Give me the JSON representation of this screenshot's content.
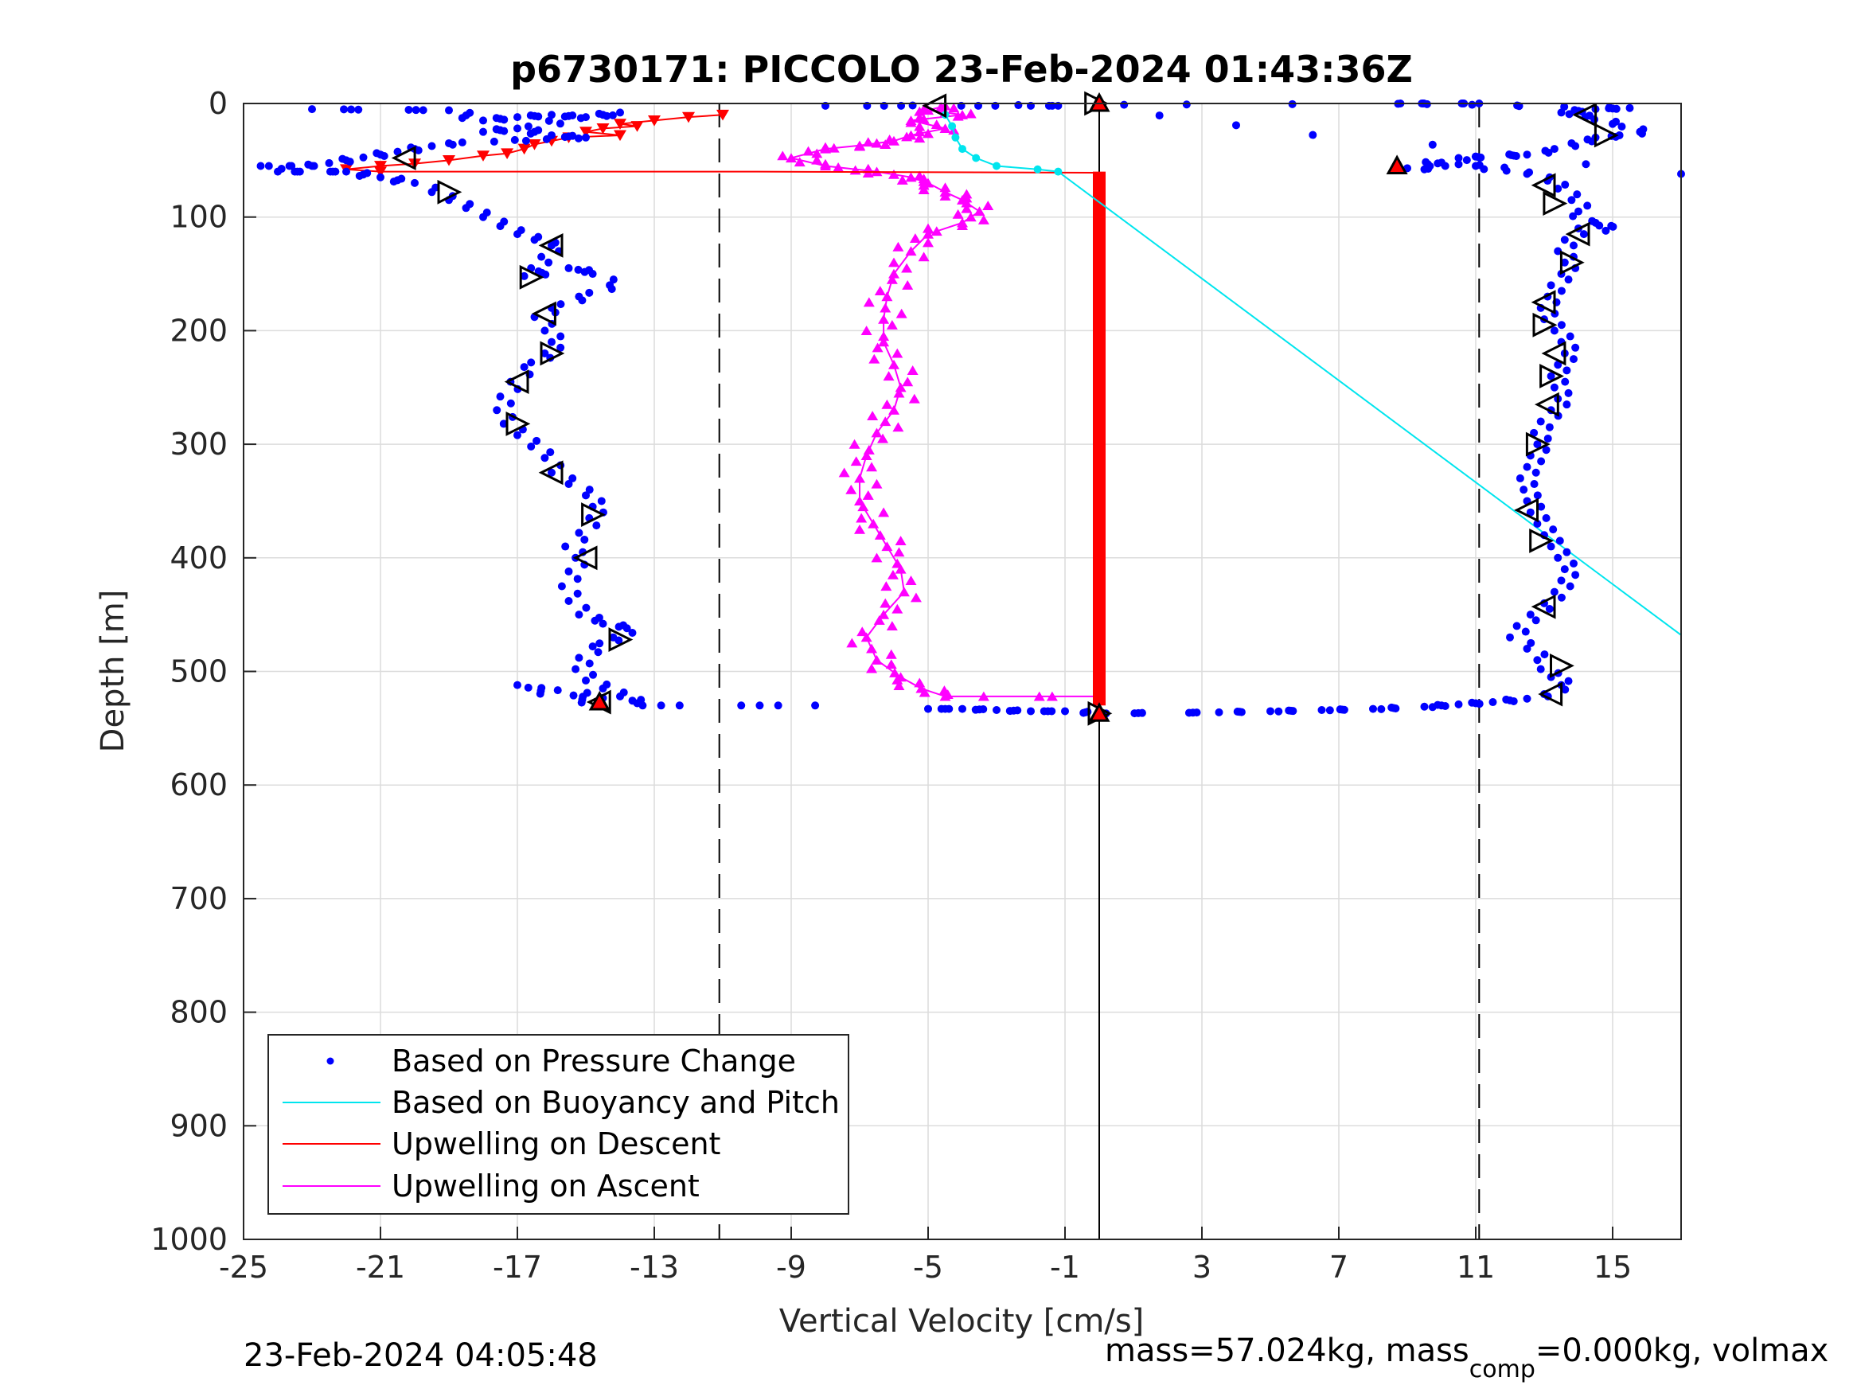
{
  "chart_data": {
    "type": "scatter",
    "title": "p6730171: PICCOLO 23-Feb-2024 01:43:36Z",
    "xlabel": "Vertical Velocity [cm/s]",
    "ylabel": "Depth [m]",
    "xlim": [
      -25,
      17
    ],
    "ylim": [
      0,
      1000
    ],
    "y_reversed": true,
    "grid": true,
    "x_ticks": [
      -25,
      -21,
      -17,
      -13,
      -9,
      -5,
      -1,
      3,
      7,
      11,
      15
    ],
    "y_ticks": [
      0,
      100,
      200,
      300,
      400,
      500,
      600,
      700,
      800,
      900,
      1000
    ],
    "legend_position": "bottom-left",
    "reference_lines": [
      {
        "x": -11.1,
        "style": "dashed",
        "color": "#000000"
      },
      {
        "x": 0,
        "style": "solid",
        "color": "#000000"
      },
      {
        "x": 11.1,
        "style": "dashed",
        "color": "#000000"
      }
    ],
    "series": [
      {
        "name": "Based on Pressure Change",
        "style": "dots",
        "color": "#0000ff",
        "descent_points": [
          [
            -23,
            5
          ],
          [
            -19,
            6
          ],
          [
            -18,
            15
          ],
          [
            -17,
            12
          ],
          [
            -16,
            10
          ],
          [
            -15,
            12
          ],
          [
            -14,
            8
          ],
          [
            -18,
            25
          ],
          [
            -17,
            22
          ],
          [
            -16,
            28
          ],
          [
            -15,
            30
          ],
          [
            -19,
            35
          ],
          [
            -20,
            40
          ],
          [
            -21,
            45
          ],
          [
            -22,
            50
          ],
          [
            -23,
            55
          ],
          [
            -24.5,
            55
          ],
          [
            -24,
            60
          ],
          [
            -22,
            60
          ],
          [
            -21,
            65
          ],
          [
            -20,
            70
          ],
          [
            -19.5,
            78
          ],
          [
            -19,
            85
          ],
          [
            -18.5,
            92
          ],
          [
            -18,
            100
          ],
          [
            -17.5,
            108
          ],
          [
            -17,
            115
          ],
          [
            -16.5,
            120
          ],
          [
            -16,
            125
          ],
          [
            -16.3,
            135
          ],
          [
            -16.6,
            145
          ],
          [
            -16.8,
            152
          ],
          [
            -15.5,
            145
          ],
          [
            -14.8,
            150
          ],
          [
            -14.3,
            160
          ],
          [
            -15.2,
            170
          ],
          [
            -16,
            180
          ],
          [
            -16.5,
            188
          ],
          [
            -16.2,
            200
          ],
          [
            -16,
            210
          ],
          [
            -16.2,
            220
          ],
          [
            -16.8,
            232
          ],
          [
            -17.2,
            245
          ],
          [
            -17.5,
            258
          ],
          [
            -17.6,
            270
          ],
          [
            -17.4,
            282
          ],
          [
            -17,
            292
          ],
          [
            -16.6,
            302
          ],
          [
            -16.2,
            312
          ],
          [
            -16,
            325
          ],
          [
            -15.5,
            335
          ],
          [
            -15,
            345
          ],
          [
            -14.8,
            355
          ],
          [
            -14.9,
            365
          ],
          [
            -15.2,
            378
          ],
          [
            -15.6,
            390
          ],
          [
            -15.3,
            400
          ],
          [
            -15.5,
            412
          ],
          [
            -15.7,
            425
          ],
          [
            -15.5,
            438
          ],
          [
            -15.2,
            450
          ],
          [
            -14.5,
            458
          ],
          [
            -13.8,
            462
          ],
          [
            -14.2,
            470
          ],
          [
            -14.8,
            478
          ],
          [
            -15.2,
            488
          ],
          [
            -15.3,
            498
          ],
          [
            -15,
            508
          ],
          [
            -14.5,
            515
          ],
          [
            -14,
            522
          ],
          [
            -13.5,
            528
          ],
          [
            -17,
            512
          ],
          [
            -14.6,
            530
          ],
          [
            -8.3,
            530
          ]
        ],
        "ascent_points": [
          [
            -5,
            533
          ],
          [
            -4,
            533
          ],
          [
            -3,
            534
          ],
          [
            -2,
            535
          ],
          [
            -1,
            535
          ],
          [
            0.2,
            537
          ],
          [
            3.5,
            536
          ],
          [
            5,
            535
          ],
          [
            6.5,
            534
          ],
          [
            8,
            533
          ],
          [
            9.5,
            531
          ],
          [
            10.5,
            529
          ],
          [
            11.5,
            527
          ],
          [
            12.5,
            524
          ],
          [
            13,
            520
          ],
          [
            13.5,
            512
          ],
          [
            13.2,
            505
          ],
          [
            12.9,
            498
          ],
          [
            12.8,
            490
          ],
          [
            12.5,
            480
          ],
          [
            12,
            470
          ],
          [
            12.2,
            460
          ],
          [
            12.6,
            450
          ],
          [
            13,
            440
          ],
          [
            13.3,
            430
          ],
          [
            13.5,
            420
          ],
          [
            13.6,
            410
          ],
          [
            13.4,
            400
          ],
          [
            13.2,
            390
          ],
          [
            13,
            380
          ],
          [
            12.8,
            370
          ],
          [
            12.6,
            360
          ],
          [
            12.5,
            350
          ],
          [
            12.4,
            340
          ],
          [
            12.3,
            330
          ],
          [
            12.5,
            320
          ],
          [
            12.6,
            310
          ],
          [
            12.8,
            300
          ],
          [
            12.7,
            290
          ],
          [
            12.9,
            280
          ],
          [
            13.2,
            270
          ],
          [
            13.4,
            260
          ],
          [
            13.3,
            250
          ],
          [
            13.2,
            240
          ],
          [
            13.4,
            230
          ],
          [
            13.6,
            220
          ],
          [
            13.5,
            210
          ],
          [
            13.3,
            200
          ],
          [
            13,
            190
          ],
          [
            12.9,
            180
          ],
          [
            13.1,
            170
          ],
          [
            13.2,
            160
          ],
          [
            13.5,
            150
          ],
          [
            13.6,
            140
          ],
          [
            13.4,
            130
          ],
          [
            13.6,
            120
          ],
          [
            14,
            110
          ],
          [
            14.5,
            105
          ],
          [
            14.8,
            112
          ],
          [
            14,
            95
          ],
          [
            13.8,
            85
          ],
          [
            13.4,
            75
          ],
          [
            13.1,
            68
          ],
          [
            12.5,
            62
          ],
          [
            11,
            55
          ],
          [
            10,
            52
          ],
          [
            9.5,
            58
          ],
          [
            9,
            57
          ],
          [
            10.5,
            48
          ],
          [
            12.5,
            45
          ],
          [
            13.3,
            40
          ],
          [
            13.8,
            35
          ],
          [
            14.5,
            30
          ],
          [
            15.2,
            28
          ],
          [
            15.8,
            25
          ],
          [
            15,
            18
          ],
          [
            14.2,
            12
          ],
          [
            13.5,
            8
          ],
          [
            14.5,
            5
          ],
          [
            15.5,
            4
          ],
          [
            8.8,
            0
          ],
          [
            11.1,
            0
          ],
          [
            -8,
            2
          ],
          [
            -2,
            2
          ],
          [
            -1.2,
            2
          ],
          [
            17,
            62
          ]
        ]
      },
      {
        "name": "Based on Buoyancy and Pitch",
        "style": "line",
        "color": "#00e5ee",
        "points": [
          [
            -4.5,
            10
          ],
          [
            -4.3,
            20
          ],
          [
            -4.2,
            30
          ],
          [
            -4,
            40
          ],
          [
            -3.6,
            48
          ],
          [
            -3,
            55
          ],
          [
            -1.8,
            58
          ],
          [
            -1.2,
            60
          ],
          [
            17,
            468
          ]
        ]
      },
      {
        "name": "Upwelling on Descent",
        "style": "line",
        "color": "#ff0000",
        "markers": "triangle-down",
        "points": [
          [
            -11,
            10
          ],
          [
            -12,
            12
          ],
          [
            -13,
            15
          ],
          [
            -14,
            18
          ],
          [
            -13.5,
            20
          ],
          [
            -14.5,
            22
          ],
          [
            -15,
            25
          ],
          [
            -14,
            28
          ],
          [
            -15.5,
            30
          ],
          [
            -16,
            33
          ],
          [
            -16.5,
            36
          ],
          [
            -16.8,
            40
          ],
          [
            -17.3,
            44
          ],
          [
            -18,
            46
          ],
          [
            -19,
            50
          ],
          [
            -20,
            53
          ],
          [
            -21,
            55
          ],
          [
            -22,
            58
          ],
          [
            -21,
            60
          ],
          [
            -10,
            60
          ],
          [
            0,
            61
          ]
        ]
      },
      {
        "name": "Upwelling on Ascent",
        "style": "line",
        "color": "#ff00ff",
        "markers": "triangle-up",
        "points": [
          [
            -4.5,
            2
          ],
          [
            -5,
            6
          ],
          [
            -4,
            10
          ],
          [
            -5.5,
            15
          ],
          [
            -4.5,
            22
          ],
          [
            -5.5,
            28
          ],
          [
            -6,
            33
          ],
          [
            -7,
            37
          ],
          [
            -8,
            40
          ],
          [
            -9,
            48
          ],
          [
            -8,
            55
          ],
          [
            -6.5,
            60
          ],
          [
            -5.5,
            65
          ],
          [
            -5,
            70
          ],
          [
            -4.5,
            78
          ],
          [
            -4,
            85
          ],
          [
            -3.5,
            95
          ],
          [
            -4,
            105
          ],
          [
            -5,
            115
          ],
          [
            -5.5,
            130
          ],
          [
            -6,
            150
          ],
          [
            -6.2,
            170
          ],
          [
            -6.3,
            190
          ],
          [
            -6.3,
            210
          ],
          [
            -6,
            230
          ],
          [
            -5.8,
            250
          ],
          [
            -6,
            270
          ],
          [
            -6.5,
            290
          ],
          [
            -6.8,
            310
          ],
          [
            -7,
            330
          ],
          [
            -7,
            350
          ],
          [
            -6.6,
            370
          ],
          [
            -6.2,
            390
          ],
          [
            -5.8,
            410
          ],
          [
            -5.7,
            430
          ],
          [
            -6.3,
            450
          ],
          [
            -6.8,
            470
          ],
          [
            -6.5,
            490
          ],
          [
            -5.8,
            505
          ],
          [
            -5.2,
            515
          ],
          [
            -4.5,
            522
          ],
          [
            0,
            522
          ]
        ]
      },
      {
        "name": "",
        "style": "line",
        "color": "#ff0000",
        "markers": "dense-bar",
        "points": [
          [
            0,
            60
          ],
          [
            0,
            530
          ]
        ]
      }
    ],
    "open_triangle_markers": [
      [
        -4.8,
        2
      ],
      [
        -0.1,
        0
      ],
      [
        14.2,
        10
      ],
      [
        14.8,
        28
      ],
      [
        -20.3,
        48
      ],
      [
        -19,
        78
      ],
      [
        -16,
        125
      ],
      [
        -16.6,
        153
      ],
      [
        -16.2,
        185
      ],
      [
        -16,
        220
      ],
      [
        -17,
        245
      ],
      [
        -17,
        282
      ],
      [
        -16,
        325
      ],
      [
        -14.8,
        362
      ],
      [
        -15,
        400
      ],
      [
        -14,
        472
      ],
      [
        -14.6,
        527
      ],
      [
        0,
        537
      ],
      [
        13,
        72
      ],
      [
        13.3,
        88
      ],
      [
        14,
        115
      ],
      [
        13.8,
        140
      ],
      [
        13,
        175
      ],
      [
        13,
        195
      ],
      [
        13.3,
        220
      ],
      [
        13.2,
        240
      ],
      [
        13.1,
        265
      ],
      [
        12.8,
        300
      ],
      [
        12.5,
        358
      ],
      [
        12.9,
        385
      ],
      [
        13,
        443
      ],
      [
        13.5,
        495
      ],
      [
        13.2,
        520
      ]
    ],
    "red_markers": [
      [
        8.7,
        55
      ],
      [
        -14.6,
        527
      ],
      [
        0,
        537
      ],
      [
        0,
        0
      ]
    ],
    "footer_left": "23-Feb-2024 04:05:48",
    "footer_right_prefix": "mass=57.024kg, mass",
    "footer_right_sub": "comp",
    "footer_right_suffix": "=0.000kg, volmax"
  }
}
